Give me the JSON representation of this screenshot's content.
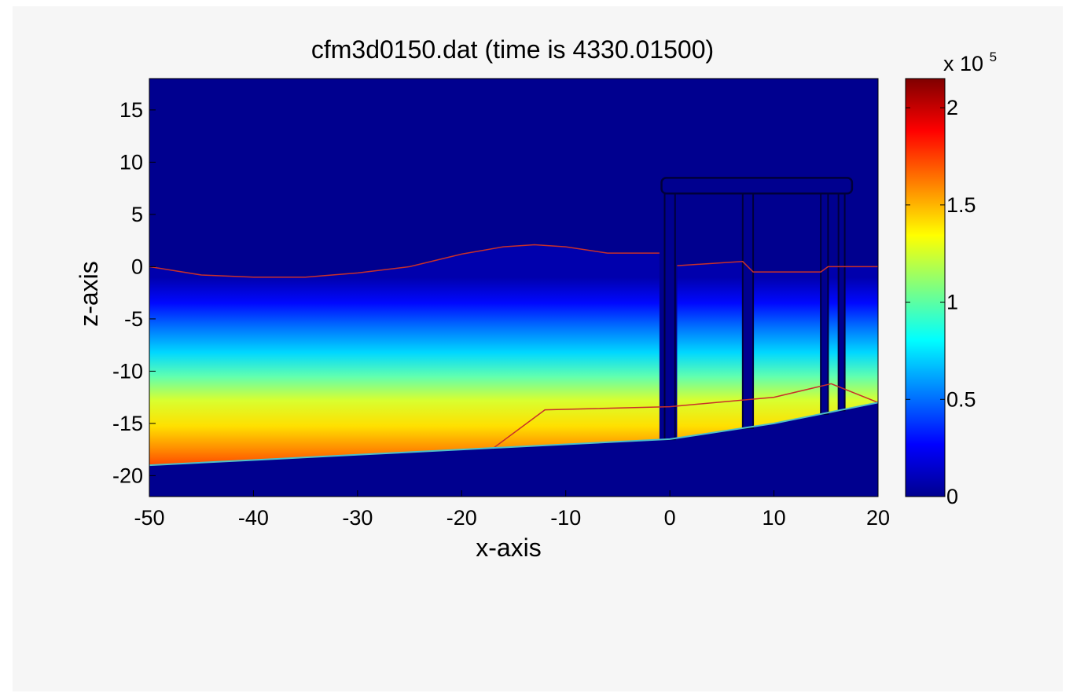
{
  "chart_data": {
    "type": "heatmap",
    "title": "cfm3d0150.dat (time is 4330.01500)",
    "xlabel": "x-axis",
    "ylabel": "z-axis",
    "xlim": [
      -50,
      20
    ],
    "ylim": [
      -22,
      18
    ],
    "x_ticks": [
      "-50",
      "-40",
      "-30",
      "-20",
      "-10",
      "0",
      "10",
      "20"
    ],
    "y_ticks": [
      "15",
      "10",
      "5",
      "0",
      "-5",
      "-10",
      "-15",
      "-20"
    ],
    "colorbar": {
      "range": [
        0,
        215000
      ],
      "ticks": [
        "0",
        "0.5",
        "1",
        "1.5",
        "2"
      ],
      "exponent_label": "x 10",
      "exponent": "5",
      "colormap": "jet"
    },
    "background_color": "#00008f",
    "free_surface": [
      [
        -50,
        0
      ],
      [
        -45,
        -0.8
      ],
      [
        -40,
        -1.0
      ],
      [
        -35,
        -1.0
      ],
      [
        -30,
        -0.6
      ],
      [
        -25,
        0
      ],
      [
        -20,
        1.2
      ],
      [
        -16,
        1.9
      ],
      [
        -13,
        2.1
      ],
      [
        -10,
        1.9
      ],
      [
        -6,
        1.3
      ],
      [
        -1,
        1.3
      ]
    ],
    "bottom_profile": [
      [
        -50,
        -19
      ],
      [
        -40,
        -18.5
      ],
      [
        -30,
        -18
      ],
      [
        -20,
        -17.5
      ],
      [
        -10,
        -17
      ],
      [
        0,
        -16.5
      ],
      [
        10,
        -15
      ],
      [
        20,
        -13
      ]
    ],
    "secondary_line": [
      [
        -17,
        -17.4
      ],
      [
        -12,
        -13.7
      ],
      [
        0,
        -13.4
      ],
      [
        10,
        -12.5
      ],
      [
        15.5,
        -11.2
      ],
      [
        20,
        -13
      ]
    ],
    "structure_free_surface": [
      [
        0.7,
        0.1
      ],
      [
        7,
        0.5
      ],
      [
        8,
        -0.5
      ],
      [
        14.5,
        -0.5
      ],
      [
        15.2,
        0
      ],
      [
        16,
        0
      ],
      [
        17.5,
        0
      ],
      [
        20,
        0
      ]
    ],
    "structure": {
      "deck_top": 8.5,
      "deck_bottom": 7,
      "deck_span": [
        -0.8,
        17.5
      ],
      "piles": [
        [
          -0.5,
          0.5
        ],
        [
          7,
          8
        ],
        [
          14.5,
          15.2
        ],
        [
          16.2,
          16.8
        ]
      ]
    }
  }
}
